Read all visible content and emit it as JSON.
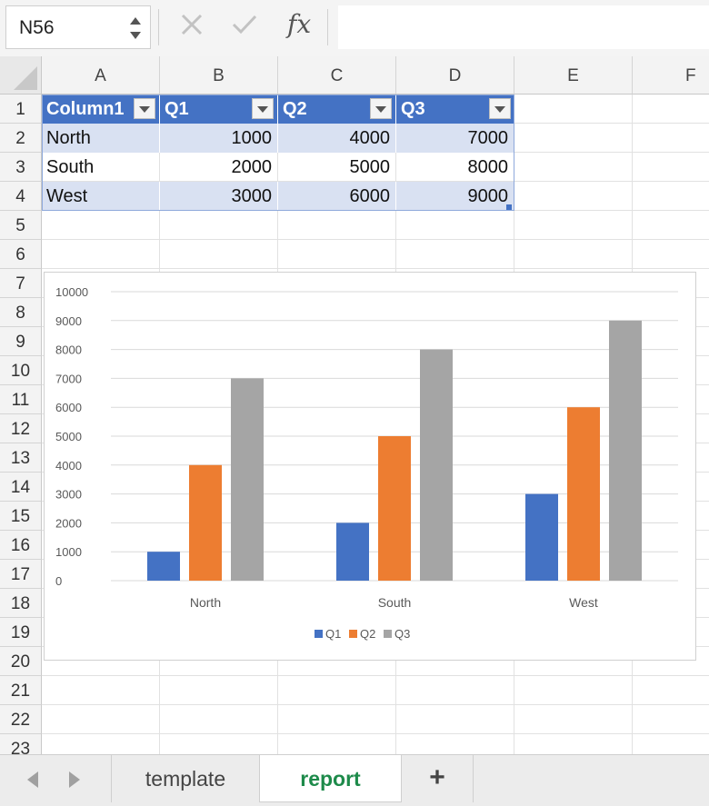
{
  "name_box": "N56",
  "formula": {
    "fx_label": "fx",
    "value": ""
  },
  "columns": [
    "A",
    "B",
    "C",
    "D",
    "E",
    "F"
  ],
  "rows": [
    "1",
    "2",
    "3",
    "4",
    "5",
    "6",
    "7",
    "8",
    "9",
    "10",
    "11",
    "12",
    "13",
    "14",
    "15",
    "16",
    "17",
    "18",
    "19",
    "20",
    "21",
    "22",
    "23"
  ],
  "table": {
    "headers": [
      "Column1",
      "Q1",
      "Q2",
      "Q3"
    ],
    "rows": [
      [
        "North",
        "1000",
        "4000",
        "7000"
      ],
      [
        "South",
        "2000",
        "5000",
        "8000"
      ],
      [
        "West",
        "3000",
        "6000",
        "9000"
      ]
    ]
  },
  "chart_data": {
    "type": "bar",
    "categories": [
      "North",
      "South",
      "West"
    ],
    "series": [
      {
        "name": "Q1",
        "values": [
          1000,
          2000,
          3000
        ],
        "color": "#4472c4"
      },
      {
        "name": "Q2",
        "values": [
          4000,
          5000,
          6000
        ],
        "color": "#ed7d31"
      },
      {
        "name": "Q3",
        "values": [
          7000,
          8000,
          9000
        ],
        "color": "#a5a5a5"
      }
    ],
    "yticks": [
      "0",
      "1000",
      "2000",
      "3000",
      "4000",
      "5000",
      "6000",
      "7000",
      "8000",
      "9000",
      "10000"
    ],
    "ylim": [
      0,
      10000
    ],
    "grid": true,
    "legend": "bottom"
  },
  "sheets": [
    {
      "label": "template",
      "active": false
    },
    {
      "label": "report",
      "active": true
    }
  ],
  "add_sheet_label": "+",
  "icons": {
    "cancel": "close-icon",
    "confirm": "check-icon",
    "nav_prev": "chevron-left-icon",
    "nav_next": "chevron-right-icon"
  }
}
